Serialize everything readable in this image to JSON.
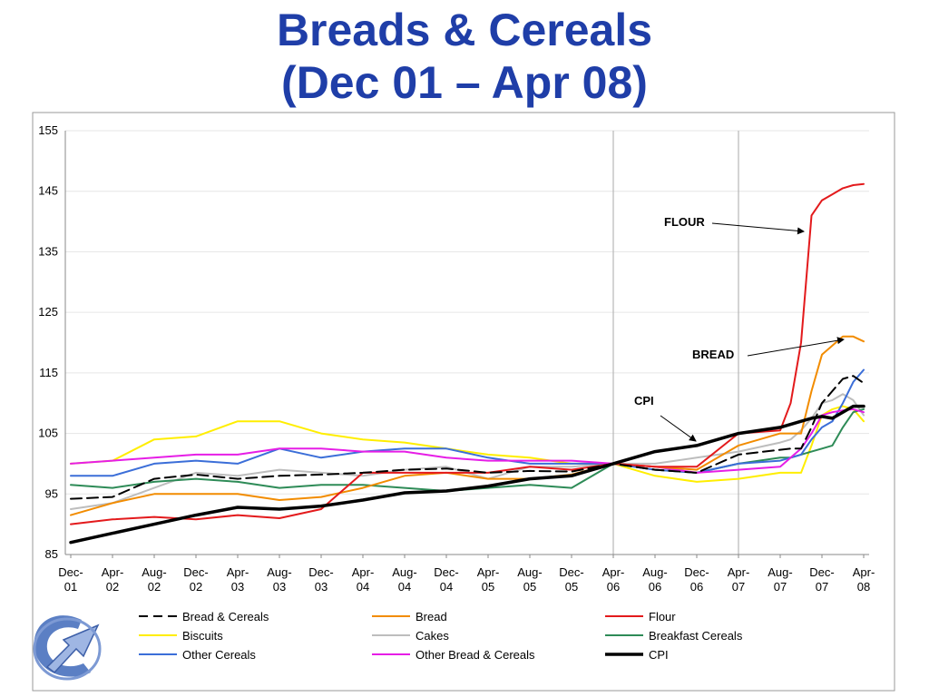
{
  "slide": {
    "title_line1": "Breads & Cereals",
    "title_line2": "(Dec 01 – Apr 08)"
  },
  "chart_data": {
    "type": "line",
    "title": "Breads & Cereals (Dec 01 – Apr 08)",
    "xlabel": "",
    "ylabel": "",
    "ylim": [
      85,
      155
    ],
    "yticks": [
      85,
      95,
      105,
      115,
      125,
      135,
      145,
      155
    ],
    "x_tick_labels": [
      "Dec-01",
      "Apr-02",
      "Aug-02",
      "Dec-02",
      "Apr-03",
      "Aug-03",
      "Dec-03",
      "Apr-04",
      "Aug-04",
      "Dec-04",
      "Apr-05",
      "Aug-05",
      "Dec-05",
      "Apr-06",
      "Aug-06",
      "Dec-06",
      "Apr-07",
      "Aug-07",
      "Dec-07",
      "Apr-08"
    ],
    "x_start": "Dec-01",
    "x_end": "Apr-08",
    "grid": "horizontal",
    "reference_lines_at": [
      "Apr-06",
      "Apr-07"
    ],
    "legend_position": "bottom",
    "x": [
      "Dec-01",
      "Apr-02",
      "Aug-02",
      "Dec-02",
      "Apr-03",
      "Aug-03",
      "Dec-03",
      "Apr-04",
      "Aug-04",
      "Dec-04",
      "Apr-05",
      "Aug-05",
      "Dec-05",
      "Apr-06",
      "Aug-06",
      "Dec-06",
      "Apr-07",
      "Aug-07",
      "Sep-07",
      "Oct-07",
      "Nov-07",
      "Dec-07",
      "Jan-08",
      "Feb-08",
      "Mar-08",
      "Apr-08"
    ],
    "series": [
      {
        "name": "Bread & Cereals",
        "color": "#000000",
        "dash": "dashed",
        "width": 2,
        "values": [
          94.2,
          94.5,
          97.5,
          98.2,
          97.5,
          98.0,
          98.2,
          98.5,
          99.0,
          99.2,
          98.5,
          98.8,
          98.7,
          100.0,
          99.0,
          98.5,
          101.5,
          102.3,
          102.5,
          102.5,
          106.0,
          110.0,
          112.0,
          114.0,
          114.5,
          113.3
        ]
      },
      {
        "name": "Bread",
        "color": "#f28c00",
        "dash": "solid",
        "width": 2,
        "values": [
          91.5,
          93.5,
          95.0,
          95.0,
          95.0,
          94.0,
          94.5,
          96.0,
          98.0,
          98.5,
          97.5,
          97.5,
          98.2,
          100.0,
          99.5,
          99.0,
          103.0,
          105.0,
          105.0,
          105.0,
          112.0,
          118.0,
          119.5,
          121.0,
          121.0,
          120.2
        ]
      },
      {
        "name": "Flour",
        "color": "#e31a1c",
        "dash": "solid",
        "width": 2,
        "values": [
          90.0,
          90.8,
          91.2,
          90.8,
          91.5,
          91.0,
          92.5,
          98.5,
          98.5,
          98.5,
          98.5,
          99.5,
          99.0,
          100.0,
          99.5,
          99.5,
          105.0,
          105.5,
          110.0,
          120.0,
          141.0,
          143.5,
          144.5,
          145.5,
          146.0,
          146.2
        ]
      },
      {
        "name": "Biscuits",
        "color": "#ffee00",
        "dash": "solid",
        "width": 2,
        "values": [
          100.0,
          100.5,
          104.0,
          104.5,
          107.0,
          107.0,
          105.0,
          104.0,
          103.5,
          102.5,
          101.5,
          101.0,
          100.0,
          100.0,
          98.0,
          97.0,
          97.5,
          98.5,
          98.5,
          98.5,
          103.0,
          108.0,
          109.0,
          109.5,
          109.0,
          107.0
        ]
      },
      {
        "name": "Cakes",
        "color": "#bdbdbd",
        "dash": "solid",
        "width": 2,
        "values": [
          92.5,
          93.5,
          96.0,
          98.5,
          98.0,
          99.0,
          98.5,
          98.0,
          99.0,
          99.5,
          97.5,
          99.5,
          99.5,
          100.0,
          100.0,
          101.0,
          102.0,
          103.5,
          104.0,
          105.5,
          107.5,
          110.0,
          110.5,
          111.5,
          110.5,
          108.0
        ]
      },
      {
        "name": "Breakfast Cereals",
        "color": "#2e8b57",
        "dash": "solid",
        "width": 2,
        "values": [
          96.5,
          96.0,
          97.0,
          97.5,
          97.0,
          96.0,
          96.5,
          96.5,
          96.0,
          95.5,
          96.0,
          96.5,
          96.0,
          100.0,
          99.0,
          98.5,
          100.0,
          101.0,
          101.0,
          101.5,
          102.0,
          102.5,
          103.0,
          106.0,
          108.5,
          109.0
        ]
      },
      {
        "name": "Other Cereals",
        "color": "#3b6ed8",
        "dash": "solid",
        "width": 2,
        "values": [
          98.0,
          98.0,
          100.0,
          100.5,
          100.0,
          102.5,
          101.0,
          102.0,
          102.5,
          102.5,
          101.0,
          100.0,
          100.0,
          100.0,
          99.0,
          98.5,
          100.0,
          100.5,
          101.0,
          101.5,
          104.0,
          106.0,
          107.0,
          110.0,
          113.5,
          115.5
        ]
      },
      {
        "name": "Other Bread & Cereals",
        "color": "#e61ee6",
        "dash": "solid",
        "width": 2,
        "values": [
          100.0,
          100.5,
          101.0,
          101.5,
          101.5,
          102.5,
          102.5,
          102.0,
          102.0,
          101.0,
          100.5,
          100.5,
          100.5,
          100.0,
          99.5,
          98.5,
          99.0,
          99.5,
          101.0,
          102.5,
          105.0,
          108.0,
          108.5,
          108.8,
          109.0,
          108.5
        ]
      },
      {
        "name": "CPI",
        "color": "#000000",
        "dash": "solid",
        "width": 3.5,
        "values": [
          87.0,
          88.5,
          90.0,
          91.5,
          92.8,
          92.5,
          93.0,
          94.0,
          95.2,
          95.5,
          96.3,
          97.5,
          98.0,
          100.0,
          102.0,
          103.0,
          105.0,
          106.0,
          106.5,
          107.0,
          107.5,
          107.8,
          107.5,
          108.5,
          109.5,
          109.5
        ]
      }
    ],
    "annotations": [
      {
        "text": "FLOUR",
        "target_series": "Flour"
      },
      {
        "text": "BREAD",
        "target_series": "Bread"
      },
      {
        "text": "CPI",
        "target_series": "CPI"
      }
    ]
  }
}
